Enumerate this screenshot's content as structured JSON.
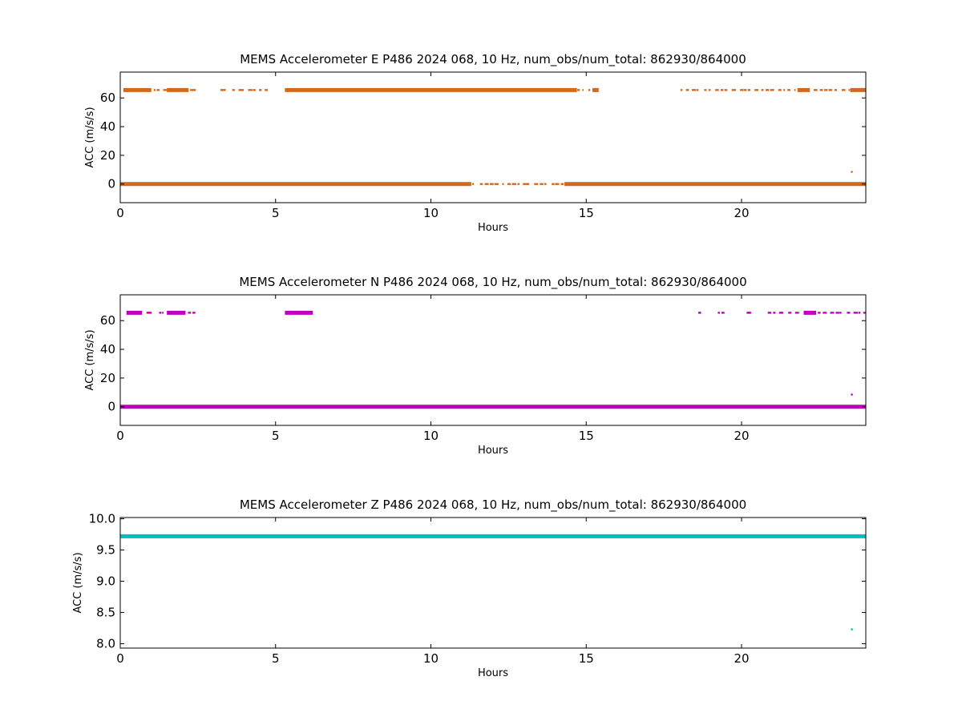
{
  "chart_data": [
    {
      "type": "scatter",
      "title": "MEMS Accelerometer E P486 2024 068, 10 Hz, num_obs/num_total: 862930/864000",
      "xlabel": "Hours",
      "ylabel": "ACC (m/s/s)",
      "xlim": [
        0,
        24
      ],
      "ylim": [
        -13,
        78
      ],
      "xticks": [
        0,
        5,
        10,
        15,
        20
      ],
      "yticks": [
        0,
        20,
        40,
        60
      ],
      "color": "#d2691e",
      "grid": false,
      "series": [
        {
          "points_y": 0,
          "segments": [
            [
              0,
              11.3
            ],
            [
              14.3,
              24
            ]
          ],
          "sparse_segments": [
            [
              11.3,
              14.3
            ]
          ],
          "points": []
        },
        {
          "points_y": 65.5,
          "segments": [
            [
              0.1,
              1.0
            ],
            [
              1.5,
              2.2
            ],
            [
              5.3,
              14.7
            ],
            [
              15.2,
              15.4
            ],
            [
              21.8,
              22.2
            ],
            [
              23.5,
              24
            ]
          ],
          "sparse_segments": [
            [
              1.0,
              1.5
            ],
            [
              2.2,
              2.4
            ],
            [
              3.1,
              4.8
            ],
            [
              14.7,
              15.2
            ],
            [
              18.0,
              21.8
            ],
            [
              22.2,
              23.5
            ]
          ],
          "points": []
        },
        {
          "points_y": null,
          "segments": [],
          "sparse_segments": [],
          "points": [
            [
              23.55,
              8.5
            ]
          ]
        }
      ]
    },
    {
      "type": "scatter",
      "title": "MEMS Accelerometer N P486 2024 068, 10 Hz, num_obs/num_total: 862930/864000",
      "xlabel": "Hours",
      "ylabel": "ACC (m/s/s)",
      "xlim": [
        0,
        24
      ],
      "ylim": [
        -13,
        78
      ],
      "xticks": [
        0,
        5,
        10,
        15,
        20
      ],
      "yticks": [
        0,
        20,
        40,
        60
      ],
      "color": "#bf00bf",
      "grid": false,
      "series": [
        {
          "points_y": 0,
          "segments": [
            [
              0,
              24
            ]
          ],
          "sparse_segments": [],
          "points": []
        },
        {
          "points_y": 65.5,
          "segments": [
            [
              0.2,
              0.7
            ],
            [
              1.5,
              2.1
            ],
            [
              5.3,
              6.2
            ],
            [
              22.0,
              22.4
            ]
          ],
          "sparse_segments": [
            [
              0.7,
              1.5
            ],
            [
              2.1,
              2.4
            ],
            [
              18.6,
              18.7
            ],
            [
              19.2,
              19.4
            ],
            [
              20.1,
              20.3
            ],
            [
              20.7,
              21.8
            ],
            [
              22.4,
              24
            ]
          ],
          "points": []
        },
        {
          "points_y": null,
          "segments": [],
          "sparse_segments": [],
          "points": [
            [
              23.55,
              8.5
            ]
          ]
        }
      ]
    },
    {
      "type": "scatter",
      "title": "MEMS Accelerometer Z P486 2024 068, 10 Hz, num_obs/num_total: 862930/864000",
      "xlabel": "Hours",
      "ylabel": "ACC (m/s/s)",
      "xlim": [
        0,
        24
      ],
      "ylim": [
        7.93,
        10.02
      ],
      "xticks": [
        0,
        5,
        10,
        15,
        20
      ],
      "yticks": [
        8.0,
        8.5,
        9.0,
        9.5,
        10.0
      ],
      "ytick_labels": [
        "8.0",
        "8.5",
        "9.0",
        "9.5",
        "10.0"
      ],
      "color": "#00bfbf",
      "grid": false,
      "series": [
        {
          "points_y": 9.72,
          "segments": [
            [
              0,
              24
            ]
          ],
          "sparse_segments": [],
          "points": []
        },
        {
          "points_y": null,
          "segments": [],
          "sparse_segments": [],
          "points": [
            [
              23.55,
              8.23
            ]
          ]
        }
      ]
    }
  ]
}
